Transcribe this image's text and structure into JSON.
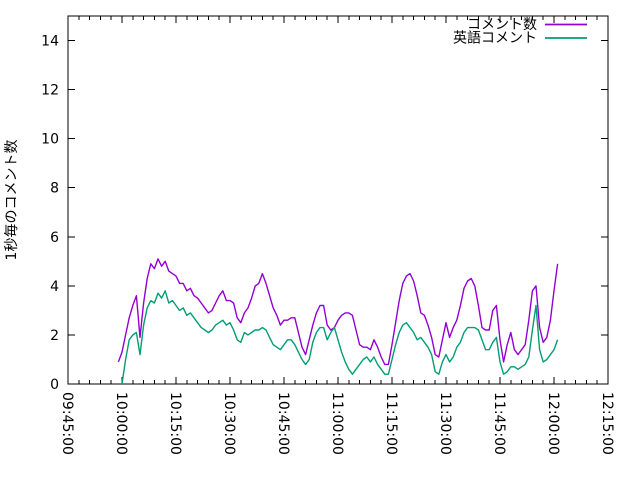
{
  "page": {
    "background": "#ffffff",
    "foreground": "#000000"
  },
  "chart_data": {
    "type": "line",
    "title": "",
    "xlabel": "",
    "ylabel": "1秒毎のコメント数",
    "ylim": [
      0,
      15
    ],
    "y_major_ticks": [
      0,
      2,
      4,
      6,
      8,
      10,
      12,
      14
    ],
    "x_base_time": "09:45:00",
    "x_range_minutes": [
      0,
      150
    ],
    "x_major_interval_minutes": 15,
    "x_minor_interval_minutes": 3,
    "x_tick_labels": [
      "09:45:00",
      "10:00:00",
      "10:15:00",
      "10:30:00",
      "10:45:00",
      "11:00:00",
      "11:15:00",
      "11:30:00",
      "11:45:00",
      "12:00:00",
      "12:15:00"
    ],
    "grid": false,
    "legend": {
      "position": "top-right-inside"
    },
    "axis_color": "#000000",
    "series": [
      {
        "name": "コメント数",
        "color": "#9400d3",
        "x_start_minute": 14,
        "x_step_minutes": 1,
        "values": [
          0.9,
          1.3,
          2.0,
          2.7,
          3.2,
          3.6,
          1.9,
          3.3,
          4.3,
          4.9,
          4.7,
          5.1,
          4.8,
          5.0,
          4.6,
          4.5,
          4.4,
          4.1,
          4.1,
          3.8,
          3.9,
          3.6,
          3.5,
          3.3,
          3.1,
          2.9,
          3.0,
          3.3,
          3.6,
          3.8,
          3.4,
          3.4,
          3.3,
          2.7,
          2.5,
          2.9,
          3.1,
          3.5,
          4.0,
          4.1,
          4.5,
          4.1,
          3.6,
          3.1,
          2.8,
          2.4,
          2.6,
          2.6,
          2.7,
          2.7,
          2.1,
          1.5,
          1.2,
          1.8,
          2.4,
          2.9,
          3.2,
          3.2,
          2.4,
          2.2,
          2.3,
          2.6,
          2.8,
          2.9,
          2.9,
          2.8,
          2.2,
          1.6,
          1.5,
          1.5,
          1.4,
          1.8,
          1.5,
          1.1,
          0.8,
          0.8,
          1.6,
          2.5,
          3.4,
          4.1,
          4.4,
          4.5,
          4.2,
          3.6,
          2.9,
          2.8,
          2.4,
          1.9,
          1.2,
          1.1,
          1.8,
          2.5,
          1.9,
          2.3,
          2.6,
          3.2,
          3.9,
          4.2,
          4.3,
          4.0,
          3.2,
          2.3,
          2.2,
          2.2,
          3.0,
          3.2,
          1.8,
          0.9,
          1.6,
          2.1,
          1.4,
          1.2,
          1.4,
          1.6,
          2.6,
          3.8,
          4.0,
          2.3,
          1.7,
          1.9,
          2.6,
          3.8,
          4.9
        ]
      },
      {
        "name": "英語コメント",
        "color": "#009e73",
        "x_start_minute": 15,
        "x_step_minutes": 1,
        "values": [
          0.0,
          1.0,
          1.8,
          2.0,
          2.1,
          1.2,
          2.4,
          3.1,
          3.4,
          3.3,
          3.7,
          3.5,
          3.8,
          3.3,
          3.4,
          3.2,
          3.0,
          3.1,
          2.8,
          2.9,
          2.7,
          2.5,
          2.3,
          2.2,
          2.1,
          2.2,
          2.4,
          2.5,
          2.6,
          2.4,
          2.5,
          2.2,
          1.8,
          1.7,
          2.1,
          2.0,
          2.1,
          2.2,
          2.2,
          2.3,
          2.2,
          1.9,
          1.6,
          1.5,
          1.4,
          1.6,
          1.8,
          1.8,
          1.6,
          1.3,
          1.0,
          0.8,
          1.0,
          1.7,
          2.1,
          2.3,
          2.3,
          1.8,
          2.1,
          2.3,
          1.8,
          1.3,
          0.9,
          0.6,
          0.4,
          0.6,
          0.8,
          1.0,
          1.1,
          0.9,
          1.1,
          0.8,
          0.6,
          0.4,
          0.4,
          1.0,
          1.6,
          2.1,
          2.4,
          2.5,
          2.3,
          2.1,
          1.8,
          1.9,
          1.7,
          1.5,
          1.2,
          0.5,
          0.4,
          0.9,
          1.2,
          0.9,
          1.1,
          1.5,
          1.7,
          2.1,
          2.3,
          2.3,
          2.3,
          2.2,
          1.8,
          1.4,
          1.4,
          1.7,
          1.9,
          0.9,
          0.4,
          0.5,
          0.7,
          0.7,
          0.6,
          0.7,
          0.8,
          1.1,
          2.2,
          3.2,
          1.4,
          0.9,
          1.0,
          1.2,
          1.4,
          1.8
        ]
      }
    ]
  }
}
